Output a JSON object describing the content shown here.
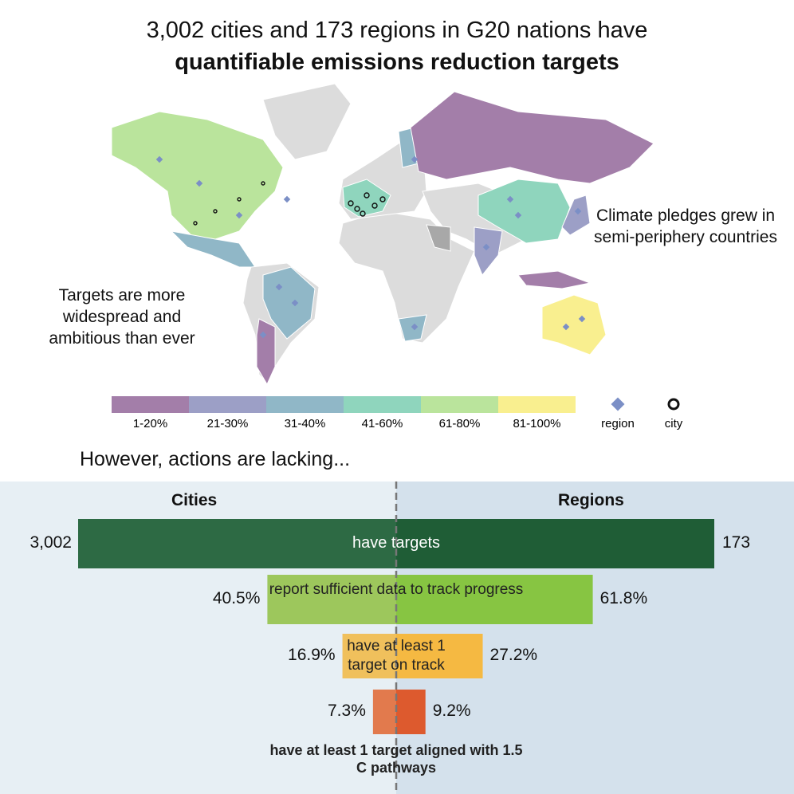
{
  "title": "3,002 cities and 173 regions in G20 nations have",
  "title_bold": "quantifiable emissions reduction targets",
  "map": {
    "annotations": [
      "Targets are more widespread and ambitious than ever",
      "Climate pledges grew in semi-periphery countries"
    ],
    "legend": {
      "bins": [
        {
          "label": "1-20%",
          "color": "#a37ea9"
        },
        {
          "label": "21-30%",
          "color": "#9c9fc6"
        },
        {
          "label": "31-40%",
          "color": "#90b7c7"
        },
        {
          "label": "41-60%",
          "color": "#8fd5bd"
        },
        {
          "label": "61-80%",
          "color": "#bae49c"
        },
        {
          "label": "81-100%",
          "color": "#f9ef8f"
        }
      ],
      "region_label": "region",
      "region_color": "#7b8fc6",
      "city_label": "city"
    }
  },
  "chart_data": {
    "type": "butterfly",
    "subtitle": "However, actions are lacking...",
    "total_category": "have targets",
    "categories": [
      "report sufficient data to track progress",
      "have at least 1 target on track",
      "have at least 1 target aligned with 1.5 C pathways"
    ],
    "xlim": [
      0,
      100
    ],
    "series": [
      {
        "name": "Cities",
        "total": 3002,
        "total_label": "3,002",
        "total_color": "#2d6a44",
        "values": [
          40.5,
          16.9,
          7.3
        ],
        "value_labels": [
          "40.5%",
          "16.9%",
          "7.3%"
        ],
        "colors": [
          "#9dc75c",
          "#f0c05c",
          "#e27a4d"
        ]
      },
      {
        "name": "Regions",
        "total": 173,
        "total_label": "173",
        "total_color": "#1f5d36",
        "values": [
          61.8,
          27.2,
          9.2
        ],
        "value_labels": [
          "61.8%",
          "27.2%",
          "9.2%"
        ],
        "colors": [
          "#87c542",
          "#f5b942",
          "#dd5a2e"
        ]
      }
    ]
  }
}
